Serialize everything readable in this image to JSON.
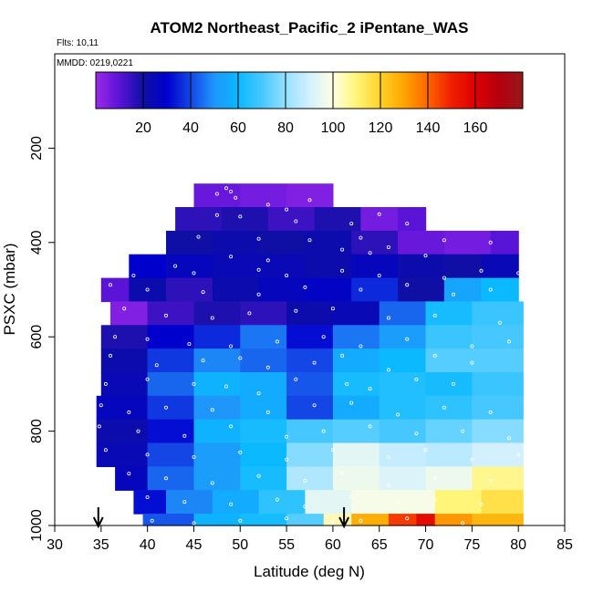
{
  "chart_data": {
    "type": "heatmap",
    "title": "ATOM2 Northeast_Pacific_2 iPentane_WAS",
    "flights_note": "Flts: 10,11",
    "date_note": "MMDD: 0219,0221",
    "xlabel": "Latitude (deg N)",
    "ylabel": "PSXC (mbar)",
    "xlim": [
      30,
      85
    ],
    "ylim": [
      1000,
      0
    ],
    "x_ticks": [
      30,
      35,
      40,
      45,
      50,
      55,
      60,
      65,
      70,
      75,
      80,
      85
    ],
    "y_ticks": [
      200,
      400,
      600,
      800,
      1000
    ],
    "colorbar": {
      "min": 0,
      "max": 180,
      "ticks": [
        20,
        40,
        60,
        80,
        100,
        120,
        140,
        160
      ],
      "placement": "top"
    },
    "arrows_at_latitude": [
      34.7,
      61.2
    ],
    "bands": [
      {
        "p_top": 275,
        "p_bot": 325,
        "segments": [
          [
            45,
            50,
            8
          ],
          [
            50,
            55,
            6
          ],
          [
            55,
            60,
            4
          ]
        ]
      },
      {
        "p_top": 325,
        "p_bot": 375,
        "segments": [
          [
            43,
            48,
            16
          ],
          [
            48,
            53,
            18
          ],
          [
            53,
            58,
            14
          ],
          [
            58,
            63,
            18
          ],
          [
            63,
            67,
            6
          ],
          [
            67,
            70,
            10
          ]
        ]
      },
      {
        "p_top": 375,
        "p_bot": 425,
        "segments": [
          [
            42,
            47,
            20
          ],
          [
            47,
            52,
            22
          ],
          [
            52,
            57,
            20
          ],
          [
            57,
            62,
            22
          ],
          [
            62,
            67,
            16
          ],
          [
            67,
            72,
            8
          ],
          [
            72,
            77,
            6
          ],
          [
            77,
            80,
            10
          ]
        ]
      },
      {
        "p_top": 425,
        "p_bot": 475,
        "segments": [
          [
            38,
            42,
            30
          ],
          [
            42,
            47,
            26
          ],
          [
            47,
            52,
            24
          ],
          [
            52,
            57,
            24
          ],
          [
            57,
            62,
            22
          ],
          [
            62,
            67,
            26
          ],
          [
            67,
            72,
            22
          ],
          [
            72,
            76,
            20
          ],
          [
            76,
            80,
            24
          ]
        ]
      },
      {
        "p_top": 475,
        "p_bot": 525,
        "segments": [
          [
            35,
            38,
            10
          ],
          [
            38,
            42,
            22
          ],
          [
            42,
            47,
            16
          ],
          [
            47,
            52,
            22
          ],
          [
            52,
            57,
            26
          ],
          [
            57,
            62,
            28
          ],
          [
            62,
            67,
            36
          ],
          [
            67,
            72,
            20
          ],
          [
            72,
            76,
            54
          ],
          [
            76,
            80,
            60
          ]
        ]
      },
      {
        "p_top": 525,
        "p_bot": 575,
        "segments": [
          [
            36,
            40,
            4
          ],
          [
            40,
            45,
            14
          ],
          [
            45,
            50,
            18
          ],
          [
            50,
            55,
            16
          ],
          [
            55,
            60,
            22
          ],
          [
            60,
            65,
            24
          ],
          [
            65,
            70,
            44
          ],
          [
            70,
            75,
            62
          ],
          [
            75,
            80.5,
            68
          ]
        ]
      },
      {
        "p_top": 575,
        "p_bot": 625,
        "segments": [
          [
            35,
            40,
            18
          ],
          [
            40,
            45,
            30
          ],
          [
            45,
            50,
            36
          ],
          [
            50,
            55,
            46
          ],
          [
            55,
            60,
            32
          ],
          [
            60,
            65,
            46
          ],
          [
            65,
            70,
            52
          ],
          [
            70,
            75,
            68
          ],
          [
            75,
            80.5,
            70
          ]
        ]
      },
      {
        "p_top": 625,
        "p_bot": 675,
        "segments": [
          [
            35,
            40,
            22
          ],
          [
            40,
            45,
            38
          ],
          [
            45,
            50,
            48
          ],
          [
            50,
            55,
            44
          ],
          [
            55,
            60,
            40
          ],
          [
            60,
            65,
            56
          ],
          [
            65,
            70,
            60
          ],
          [
            70,
            75,
            72
          ],
          [
            75,
            80.5,
            72
          ]
        ]
      },
      {
        "p_top": 675,
        "p_bot": 725,
        "segments": [
          [
            35,
            40,
            24
          ],
          [
            40,
            45,
            44
          ],
          [
            45,
            50,
            58
          ],
          [
            50,
            55,
            56
          ],
          [
            55,
            60,
            42
          ],
          [
            60,
            65,
            62
          ],
          [
            65,
            70,
            64
          ],
          [
            70,
            75,
            62
          ],
          [
            75,
            80.5,
            68
          ]
        ]
      },
      {
        "p_top": 725,
        "p_bot": 775,
        "segments": [
          [
            34.5,
            40,
            26
          ],
          [
            40,
            45,
            38
          ],
          [
            45,
            50,
            50
          ],
          [
            50,
            55,
            56
          ],
          [
            55,
            60,
            40
          ],
          [
            60,
            65,
            56
          ],
          [
            65,
            70,
            64
          ],
          [
            70,
            75,
            66
          ],
          [
            75,
            80.5,
            70
          ]
        ]
      },
      {
        "p_top": 775,
        "p_bot": 825,
        "segments": [
          [
            34.5,
            40,
            22
          ],
          [
            40,
            45,
            32
          ],
          [
            45,
            50,
            58
          ],
          [
            50,
            55,
            62
          ],
          [
            55,
            60,
            70
          ],
          [
            60,
            65,
            72
          ],
          [
            65,
            70,
            70
          ],
          [
            70,
            75,
            74
          ],
          [
            75,
            80.5,
            78
          ]
        ]
      },
      {
        "p_top": 825,
        "p_bot": 875,
        "segments": [
          [
            34.5,
            40,
            24
          ],
          [
            40,
            45,
            40
          ],
          [
            45,
            50,
            52
          ],
          [
            50,
            55,
            60
          ],
          [
            55,
            60,
            78
          ],
          [
            60,
            65,
            94
          ],
          [
            65,
            70,
            88
          ],
          [
            70,
            75,
            86
          ],
          [
            75,
            80.5,
            90
          ]
        ]
      },
      {
        "p_top": 875,
        "p_bot": 925,
        "segments": [
          [
            36.5,
            40,
            26
          ],
          [
            40,
            45,
            44
          ],
          [
            45,
            50,
            52
          ],
          [
            50,
            55,
            62
          ],
          [
            55,
            60,
            84
          ],
          [
            60,
            65,
            96
          ],
          [
            65,
            70,
            92
          ],
          [
            70,
            75,
            96
          ],
          [
            75,
            80.5,
            108
          ]
        ]
      },
      {
        "p_top": 925,
        "p_bot": 975,
        "segments": [
          [
            38.5,
            42,
            32
          ],
          [
            42,
            47,
            48
          ],
          [
            47,
            52,
            56
          ],
          [
            52,
            57,
            66
          ],
          [
            57,
            62,
            94
          ],
          [
            62,
            67,
            98
          ],
          [
            67,
            71,
            98
          ],
          [
            71,
            76,
            110
          ],
          [
            76,
            80.5,
            116
          ]
        ]
      },
      {
        "p_top": 975,
        "p_bot": 1000,
        "segments": [
          [
            39.5,
            45,
            42
          ],
          [
            45,
            50,
            58
          ],
          [
            50,
            55,
            62
          ],
          [
            55,
            59,
            72
          ],
          [
            59,
            62,
            104
          ],
          [
            62,
            66,
            128
          ],
          [
            66,
            69,
            146
          ],
          [
            69,
            71,
            156
          ],
          [
            71,
            75,
            132
          ],
          [
            75,
            80.5,
            126
          ]
        ]
      }
    ],
    "sample_points": [
      [
        48.5,
        285
      ],
      [
        49,
        292
      ],
      [
        47.5,
        297
      ],
      [
        49.5,
        305
      ],
      [
        53,
        320
      ],
      [
        55,
        330
      ],
      [
        57.5,
        310
      ],
      [
        50,
        345
      ],
      [
        47.5,
        342
      ],
      [
        56,
        355
      ],
      [
        62,
        360
      ],
      [
        65,
        340
      ],
      [
        68,
        360
      ],
      [
        45.5,
        388
      ],
      [
        52,
        392
      ],
      [
        57.5,
        395
      ],
      [
        63,
        390
      ],
      [
        66,
        410
      ],
      [
        72,
        395
      ],
      [
        77,
        400
      ],
      [
        41,
        420
      ],
      [
        49,
        430
      ],
      [
        53,
        438
      ],
      [
        61,
        415
      ],
      [
        64,
        422
      ],
      [
        70,
        428
      ],
      [
        43,
        450
      ],
      [
        38.5,
        470
      ],
      [
        45,
        465
      ],
      [
        52,
        458
      ],
      [
        55,
        470
      ],
      [
        61,
        460
      ],
      [
        65,
        470
      ],
      [
        72,
        475
      ],
      [
        76,
        460
      ],
      [
        80,
        465
      ],
      [
        36,
        490
      ],
      [
        40,
        500
      ],
      [
        46,
        505
      ],
      [
        52,
        510
      ],
      [
        57,
        495
      ],
      [
        63,
        500
      ],
      [
        68,
        490
      ],
      [
        73,
        510
      ],
      [
        77,
        500
      ],
      [
        37.5,
        540
      ],
      [
        42,
        555
      ],
      [
        47,
        560
      ],
      [
        51,
        550
      ],
      [
        56,
        545
      ],
      [
        60,
        540
      ],
      [
        66,
        560
      ],
      [
        71,
        555
      ],
      [
        78,
        570
      ],
      [
        36.5,
        600
      ],
      [
        40,
        605
      ],
      [
        44.5,
        615
      ],
      [
        49,
        620
      ],
      [
        54,
        610
      ],
      [
        59,
        600
      ],
      [
        63,
        620
      ],
      [
        68,
        605
      ],
      [
        75,
        620
      ],
      [
        79,
        610
      ],
      [
        36,
        640
      ],
      [
        41,
        660
      ],
      [
        46,
        650
      ],
      [
        50,
        645
      ],
      [
        53,
        665
      ],
      [
        58,
        655
      ],
      [
        61,
        640
      ],
      [
        66,
        670
      ],
      [
        71,
        640
      ],
      [
        75,
        655
      ],
      [
        35.5,
        700
      ],
      [
        40,
        690
      ],
      [
        45,
        700
      ],
      [
        48.5,
        705
      ],
      [
        52,
        720
      ],
      [
        56,
        690
      ],
      [
        61.5,
        700
      ],
      [
        64,
        710
      ],
      [
        69,
        690
      ],
      [
        73,
        700
      ],
      [
        35,
        745
      ],
      [
        38,
        760
      ],
      [
        42,
        750
      ],
      [
        47,
        755
      ],
      [
        53,
        760
      ],
      [
        58,
        745
      ],
      [
        62,
        740
      ],
      [
        67,
        765
      ],
      [
        72,
        750
      ],
      [
        77,
        760
      ],
      [
        34.8,
        790
      ],
      [
        39,
        800
      ],
      [
        44,
        810
      ],
      [
        49,
        790
      ],
      [
        55,
        812
      ],
      [
        59,
        800
      ],
      [
        64,
        790
      ],
      [
        69,
        805
      ],
      [
        74,
        800
      ],
      [
        79,
        815
      ],
      [
        35.5,
        840
      ],
      [
        40,
        850
      ],
      [
        45,
        855
      ],
      [
        50,
        845
      ],
      [
        55,
        860
      ],
      [
        60,
        840
      ],
      [
        66,
        855
      ],
      [
        70,
        840
      ],
      [
        75,
        860
      ],
      [
        80,
        850
      ],
      [
        38,
        890
      ],
      [
        42,
        900
      ],
      [
        47,
        910
      ],
      [
        52,
        895
      ],
      [
        57,
        905
      ],
      [
        61,
        890
      ],
      [
        66,
        915
      ],
      [
        71,
        900
      ],
      [
        77,
        905
      ],
      [
        40,
        940
      ],
      [
        44,
        950
      ],
      [
        49,
        955
      ],
      [
        54,
        945
      ],
      [
        57,
        960
      ],
      [
        62,
        940
      ],
      [
        67,
        950
      ],
      [
        71,
        945
      ],
      [
        76,
        955
      ],
      [
        40.5,
        990
      ],
      [
        45,
        995
      ],
      [
        50,
        990
      ],
      [
        55,
        985
      ],
      [
        60,
        995
      ],
      [
        63,
        990
      ],
      [
        68,
        985
      ],
      [
        74,
        995
      ]
    ]
  }
}
